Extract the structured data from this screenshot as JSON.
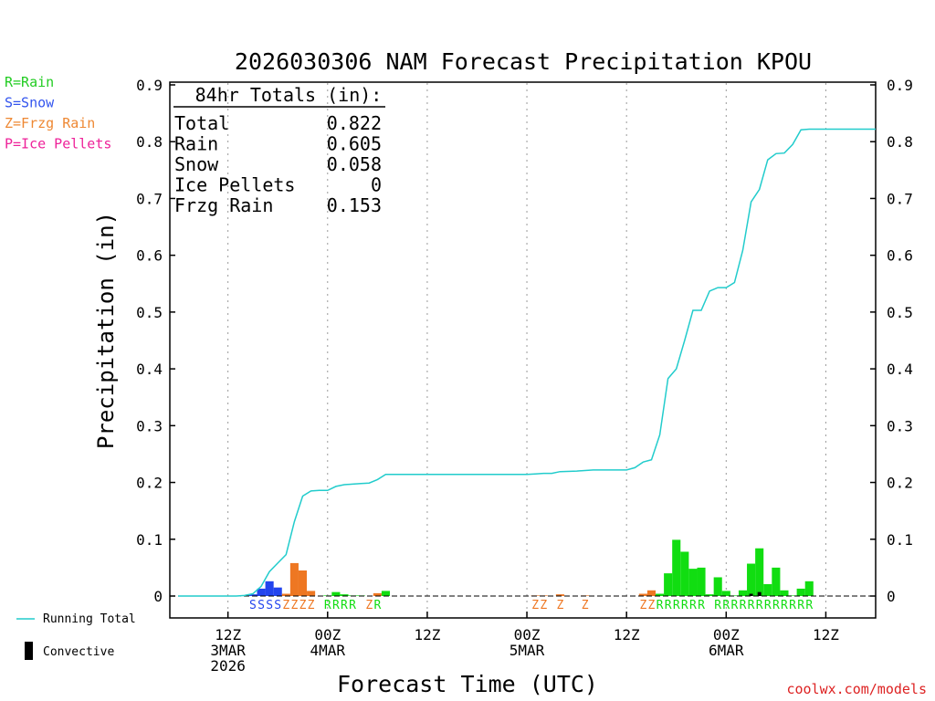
{
  "chart_data": {
    "type": "bar+line",
    "title": "2026030306 NAM Forecast Precipitation KPOU",
    "xlabel": "Forecast Time (UTC)",
    "ylabel": "Precipitation (in)",
    "ylim": [
      0,
      0.9
    ],
    "yticks": [
      "0",
      "0.1",
      "0.2",
      "0.3",
      "0.4",
      "0.5",
      "0.6",
      "0.7",
      "0.8",
      "0.9"
    ],
    "x_unit": "forecast hour",
    "xlim": [
      -1,
      84
    ],
    "xticks": [
      {
        "hour": 6,
        "lines": [
          "12Z",
          "3MAR",
          "2026"
        ]
      },
      {
        "hour": 18,
        "lines": [
          "00Z",
          "4MAR"
        ]
      },
      {
        "hour": 30,
        "lines": [
          "12Z"
        ]
      },
      {
        "hour": 42,
        "lines": [
          "00Z",
          "5MAR"
        ]
      },
      {
        "hour": 54,
        "lines": [
          "12Z"
        ]
      },
      {
        "hour": 66,
        "lines": [
          "00Z",
          "6MAR"
        ]
      },
      {
        "hour": 78,
        "lines": [
          "12Z"
        ]
      }
    ],
    "totals_box": {
      "heading": "84hr Totals (in):",
      "rows": [
        {
          "label": "Total",
          "value": "0.822"
        },
        {
          "label": "Rain",
          "value": "0.605"
        },
        {
          "label": "Snow",
          "value": "0.058"
        },
        {
          "label": "Ice Pellets",
          "value": "0"
        },
        {
          "label": "Frzg Rain",
          "value": "0.153"
        }
      ]
    },
    "ptype_legend": [
      {
        "text": "R=Rain",
        "color": "#22cc22"
      },
      {
        "text": "S=Snow",
        "color": "#3355ee"
      },
      {
        "text": "Z=Frzg Rain",
        "color": "#ee8833"
      },
      {
        "text": "P=Ice Pellets",
        "color": "#ee2299"
      }
    ],
    "line_legend": {
      "running_total": "Running Total",
      "convective": "Convective"
    },
    "colors": {
      "rain": "#11dd11",
      "snow": "#2244ee",
      "frzg": "#ee7722",
      "running_total": "#22cccc",
      "convective": "#000000"
    },
    "bars": [
      {
        "hour": 9,
        "value": 0.003,
        "type": "snow"
      },
      {
        "hour": 10,
        "value": 0.013,
        "type": "snow"
      },
      {
        "hour": 11,
        "value": 0.026,
        "type": "snow"
      },
      {
        "hour": 12,
        "value": 0.015,
        "type": "snow"
      },
      {
        "hour": 13,
        "value": 0.004,
        "type": "frzg"
      },
      {
        "hour": 14,
        "value": 0.058,
        "type": "frzg"
      },
      {
        "hour": 15,
        "value": 0.045,
        "type": "frzg"
      },
      {
        "hour": 16,
        "value": 0.009,
        "type": "frzg"
      },
      {
        "hour": 18,
        "value": 0.001,
        "type": "rain"
      },
      {
        "hour": 19,
        "value": 0.007,
        "type": "rain"
      },
      {
        "hour": 20,
        "value": 0.003,
        "type": "rain"
      },
      {
        "hour": 21,
        "value": 0.001,
        "type": "rain"
      },
      {
        "hour": 22,
        "value": 0.001,
        "type": "rain"
      },
      {
        "hour": 24,
        "value": 0.005,
        "type": "frzg"
      },
      {
        "hour": 25,
        "value": 0.009,
        "type": "rain"
      },
      {
        "hour": 43,
        "value": 0.001,
        "type": "frzg"
      },
      {
        "hour": 44,
        "value": 0.001,
        "type": "frzg"
      },
      {
        "hour": 46,
        "value": 0.003,
        "type": "frzg"
      },
      {
        "hour": 49,
        "value": 0.001,
        "type": "frzg"
      },
      {
        "hour": 56,
        "value": 0.004,
        "type": "frzg"
      },
      {
        "hour": 57,
        "value": 0.01,
        "type": "frzg"
      },
      {
        "hour": 58,
        "value": 0.004,
        "type": "rain"
      },
      {
        "hour": 59,
        "value": 0.04,
        "type": "rain"
      },
      {
        "hour": 60,
        "value": 0.099,
        "type": "rain"
      },
      {
        "hour": 61,
        "value": 0.078,
        "type": "rain"
      },
      {
        "hour": 62,
        "value": 0.048,
        "type": "rain"
      },
      {
        "hour": 63,
        "value": 0.05,
        "type": "rain"
      },
      {
        "hour": 64,
        "value": 0.003,
        "type": "rain"
      },
      {
        "hour": 65,
        "value": 0.033,
        "type": "rain"
      },
      {
        "hour": 66,
        "value": 0.009,
        "type": "rain"
      },
      {
        "hour": 67,
        "value": 0.001,
        "type": "rain"
      },
      {
        "hour": 68,
        "value": 0.01,
        "type": "rain"
      },
      {
        "hour": 69,
        "value": 0.057,
        "type": "rain"
      },
      {
        "hour": 70,
        "value": 0.084,
        "type": "rain"
      },
      {
        "hour": 71,
        "value": 0.021,
        "type": "rain"
      },
      {
        "hour": 72,
        "value": 0.05,
        "type": "rain"
      },
      {
        "hour": 73,
        "value": 0.01,
        "type": "rain"
      },
      {
        "hour": 74,
        "value": 0.001,
        "type": "rain"
      },
      {
        "hour": 75,
        "value": 0.013,
        "type": "rain"
      },
      {
        "hour": 76,
        "value": 0.026,
        "type": "rain"
      }
    ],
    "convective": [
      {
        "hour": 69,
        "value": 0.004
      },
      {
        "hour": 70,
        "value": 0.007
      }
    ],
    "running_total": [
      [
        0,
        0
      ],
      [
        7,
        0
      ],
      [
        8,
        0.001
      ],
      [
        9,
        0.004
      ],
      [
        10,
        0.017
      ],
      [
        11,
        0.043
      ],
      [
        12,
        0.058
      ],
      [
        13,
        0.073
      ],
      [
        14,
        0.131
      ],
      [
        15,
        0.176
      ],
      [
        16,
        0.185
      ],
      [
        17,
        0.186
      ],
      [
        18,
        0.186
      ],
      [
        19,
        0.193
      ],
      [
        20,
        0.196
      ],
      [
        21,
        0.197
      ],
      [
        22,
        0.198
      ],
      [
        23,
        0.199
      ],
      [
        24,
        0.205
      ],
      [
        25,
        0.214
      ],
      [
        30,
        0.214
      ],
      [
        42,
        0.214
      ],
      [
        43,
        0.215
      ],
      [
        44,
        0.216
      ],
      [
        45,
        0.216
      ],
      [
        46,
        0.219
      ],
      [
        48,
        0.22
      ],
      [
        50,
        0.222
      ],
      [
        54,
        0.222
      ],
      [
        55,
        0.226
      ],
      [
        56,
        0.236
      ],
      [
        57,
        0.24
      ],
      [
        58,
        0.284
      ],
      [
        59,
        0.383
      ],
      [
        60,
        0.4
      ],
      [
        61,
        0.45
      ],
      [
        62,
        0.503
      ],
      [
        63,
        0.503
      ],
      [
        64,
        0.537
      ],
      [
        65,
        0.543
      ],
      [
        66,
        0.543
      ],
      [
        67,
        0.552
      ],
      [
        68,
        0.609
      ],
      [
        69,
        0.694
      ],
      [
        70,
        0.716
      ],
      [
        71,
        0.768
      ],
      [
        72,
        0.779
      ],
      [
        73,
        0.78
      ],
      [
        74,
        0.795
      ],
      [
        75,
        0.821
      ],
      [
        76,
        0.822
      ],
      [
        84,
        0.822
      ]
    ],
    "ptype_letters": [
      {
        "hour": 9,
        "ch": "S",
        "type": "snow"
      },
      {
        "hour": 10,
        "ch": "S",
        "type": "snow"
      },
      {
        "hour": 11,
        "ch": "S",
        "type": "snow"
      },
      {
        "hour": 12,
        "ch": "S",
        "type": "snow"
      },
      {
        "hour": 13,
        "ch": "Z",
        "type": "frzg"
      },
      {
        "hour": 14,
        "ch": "Z",
        "type": "frzg"
      },
      {
        "hour": 15,
        "ch": "Z",
        "type": "frzg"
      },
      {
        "hour": 16,
        "ch": "Z",
        "type": "frzg"
      },
      {
        "hour": 18,
        "ch": "R",
        "type": "rain"
      },
      {
        "hour": 19,
        "ch": "R",
        "type": "rain"
      },
      {
        "hour": 20,
        "ch": "R",
        "type": "rain"
      },
      {
        "hour": 21,
        "ch": "R",
        "type": "rain"
      },
      {
        "hour": 23,
        "ch": "Z",
        "type": "frzg"
      },
      {
        "hour": 24,
        "ch": "R",
        "type": "rain"
      },
      {
        "hour": 43,
        "ch": "Z",
        "type": "frzg"
      },
      {
        "hour": 44,
        "ch": "Z",
        "type": "frzg"
      },
      {
        "hour": 46,
        "ch": "Z",
        "type": "frzg"
      },
      {
        "hour": 49,
        "ch": "Z",
        "type": "frzg"
      },
      {
        "hour": 56,
        "ch": "Z",
        "type": "frzg"
      },
      {
        "hour": 57,
        "ch": "Z",
        "type": "frzg"
      },
      {
        "hour": 58,
        "ch": "R",
        "type": "rain"
      },
      {
        "hour": 59,
        "ch": "R",
        "type": "rain"
      },
      {
        "hour": 60,
        "ch": "R",
        "type": "rain"
      },
      {
        "hour": 61,
        "ch": "R",
        "type": "rain"
      },
      {
        "hour": 62,
        "ch": "R",
        "type": "rain"
      },
      {
        "hour": 63,
        "ch": "R",
        "type": "rain"
      },
      {
        "hour": 65,
        "ch": "R",
        "type": "rain"
      },
      {
        "hour": 66,
        "ch": "R",
        "type": "rain"
      },
      {
        "hour": 67,
        "ch": "R",
        "type": "rain"
      },
      {
        "hour": 68,
        "ch": "R",
        "type": "rain"
      },
      {
        "hour": 69,
        "ch": "R",
        "type": "rain"
      },
      {
        "hour": 70,
        "ch": "R",
        "type": "rain"
      },
      {
        "hour": 71,
        "ch": "R",
        "type": "rain"
      },
      {
        "hour": 72,
        "ch": "R",
        "type": "rain"
      },
      {
        "hour": 73,
        "ch": "R",
        "type": "rain"
      },
      {
        "hour": 74,
        "ch": "R",
        "type": "rain"
      },
      {
        "hour": 75,
        "ch": "R",
        "type": "rain"
      },
      {
        "hour": 76,
        "ch": "R",
        "type": "rain"
      }
    ],
    "watermark": "coolwx.com/models"
  }
}
